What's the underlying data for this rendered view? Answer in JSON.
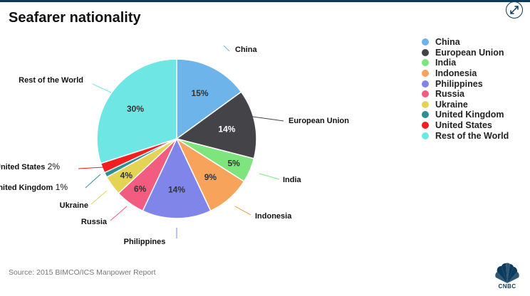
{
  "title": "Seafarer nationality",
  "source": "Source: 2015 BIMCO/ICS Manpower Report",
  "logo_text": "CNBC",
  "expand_icon": "expand-arrows-icon",
  "chart_data": {
    "type": "pie",
    "title": "Seafarer nationality",
    "series": [
      {
        "label": "China",
        "value": 15,
        "display": "15%",
        "color": "#6cb4ea"
      },
      {
        "label": "European Union",
        "value": 14,
        "display": "14%",
        "color": "#434348"
      },
      {
        "label": "India",
        "value": 5,
        "display": "5%",
        "color": "#7ee57e"
      },
      {
        "label": "Indonesia",
        "value": 9,
        "display": "9%",
        "color": "#f7a35c"
      },
      {
        "label": "Philippines",
        "value": 14,
        "display": "14%",
        "color": "#8085e9"
      },
      {
        "label": "Russia",
        "value": 6,
        "display": "6%",
        "color": "#f15c80"
      },
      {
        "label": "Ukraine",
        "value": 4,
        "display": "4%",
        "color": "#e4d354"
      },
      {
        "label": "United Kingdom",
        "value": 1,
        "display": "1%",
        "color": "#2b908f"
      },
      {
        "label": "United States",
        "value": 2,
        "display": "2%",
        "color": "#f11f1f"
      },
      {
        "label": "Rest of the World",
        "value": 30,
        "display": "30%",
        "color": "#6ee7e4"
      }
    ],
    "legend_position": "right"
  }
}
